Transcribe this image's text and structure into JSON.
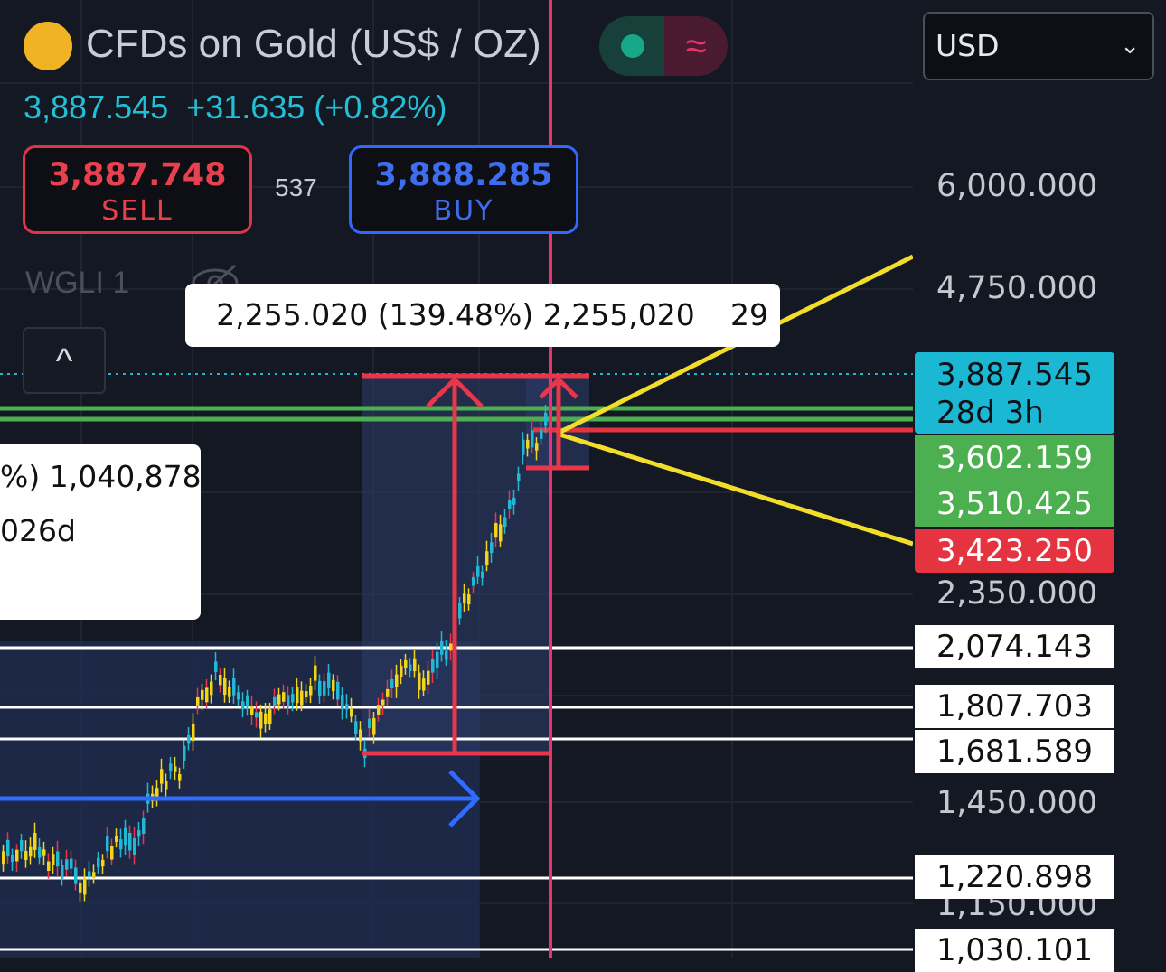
{
  "header": {
    "title": "CFDs on Gold (US$ / OZ)",
    "last_price": "3,887.545",
    "change": "+31.635 (+0.82%)",
    "toggle_icon": "≈"
  },
  "trade": {
    "sell_price": "3,887.748",
    "sell_label": "SELL",
    "buy_price": "3,888.285",
    "buy_label": "BUY",
    "spread": "537"
  },
  "indicator": {
    "label": "WGLI 1",
    "hide_icon": "eye-off-icon"
  },
  "collapse_icon": "^",
  "currency_select": {
    "value": "USD"
  },
  "measure_tooltips": {
    "main": "2,255.020 (139.48%) 2,255,020",
    "main_suffix": "29",
    "left_line1": "%) 1,040,878",
    "left_line2": "026d"
  },
  "price_axis": {
    "ticks": [
      "6,000.000",
      "4,750.000",
      "2,350.000",
      "1,450.000",
      "1,150.000"
    ],
    "current_price": "3,887.545",
    "countdown": "28d 3h",
    "level_labels": {
      "green1": "3,602.159",
      "green2": "3,510.425",
      "red": "3,423.250",
      "white1": "2,074.143",
      "white2": "1,807.703",
      "white3": "1,681.589",
      "white4": "1,220.898",
      "white5": "1,030.101"
    }
  },
  "colors": {
    "background": "#141823",
    "bull_candle": "#22b8d4",
    "bear_candle": "#f2d51a",
    "current_price": "#1bb8d4",
    "support_green": "#4caf50",
    "resistance_red": "#e53440",
    "measure_red": "#e8364a",
    "time_arrow": "#2f6bff",
    "trend_yellow": "#f2dd2a"
  }
}
